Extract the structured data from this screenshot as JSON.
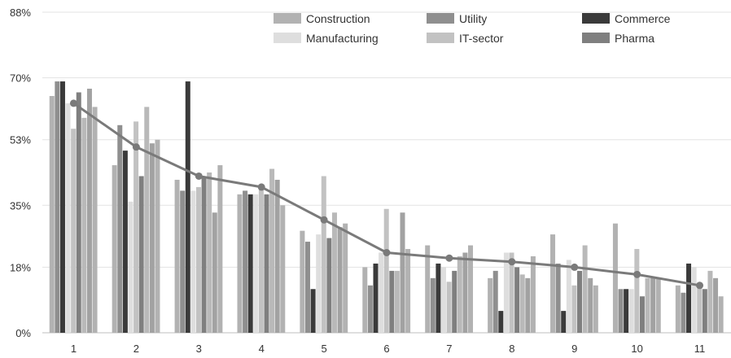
{
  "chart_data": {
    "type": "bar",
    "categories": [
      "1",
      "2",
      "3",
      "4",
      "5",
      "6",
      "7",
      "8",
      "9",
      "10",
      "11"
    ],
    "ylim": [
      0,
      88
    ],
    "yticks": [
      0,
      18,
      35,
      53,
      70,
      88
    ],
    "ytick_labels": [
      "0%",
      "18%",
      "35%",
      "53%",
      "70%",
      "88%"
    ],
    "grid": true,
    "legend_position": "top-right",
    "colors": [
      "#b2b2b2",
      "#8f8f8f",
      "#3a3a3a",
      "#dedede",
      "#c2c2c2",
      "#7f7f7f",
      "#b9b9b9",
      "#a2a2a2"
    ],
    "series": [
      {
        "name": "Construction",
        "values": [
          65,
          46,
          42,
          38,
          28,
          18,
          24,
          15,
          27,
          30,
          13
        ]
      },
      {
        "name": "Utility",
        "values": [
          69,
          57,
          39,
          39,
          25,
          13,
          15,
          17,
          19,
          12,
          11
        ]
      },
      {
        "name": "Commerce",
        "values": [
          69,
          50,
          69,
          38,
          12,
          19,
          19,
          6,
          6,
          12,
          19
        ]
      },
      {
        "name": "Manufacturing",
        "values": [
          63,
          36,
          39,
          38,
          27,
          22,
          18,
          22,
          20,
          12,
          18
        ]
      },
      {
        "name": "IT-sector",
        "values": [
          56,
          58,
          40,
          40,
          43,
          34,
          14,
          22,
          13,
          23,
          13
        ]
      },
      {
        "name": "Pharma",
        "values": [
          66,
          43,
          43,
          38,
          26,
          17,
          17,
          18,
          17,
          10,
          12
        ]
      },
      {
        "name": "",
        "values": [
          59,
          62,
          44,
          45,
          33,
          17,
          21,
          16,
          24,
          15,
          17
        ]
      },
      {
        "name": "",
        "values": [
          67,
          52,
          33,
          42,
          29,
          33,
          22,
          15,
          15,
          15,
          15
        ]
      },
      {
        "name": "",
        "values": [
          62,
          53,
          46,
          35,
          30,
          23,
          24,
          21,
          13,
          15,
          10
        ]
      }
    ],
    "line": {
      "values": [
        63,
        51,
        43,
        40,
        31,
        22,
        20.5,
        19.5,
        18,
        16,
        13
      ]
    }
  }
}
